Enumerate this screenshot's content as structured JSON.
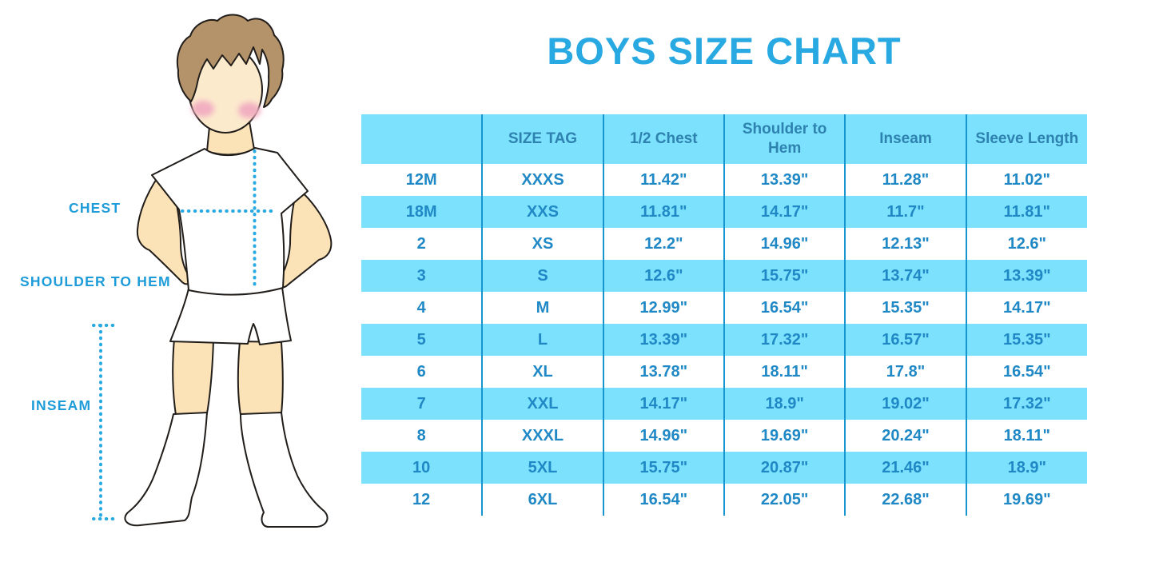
{
  "title": "BOYS SIZE CHART",
  "figure_labels": {
    "chest": "CHEST",
    "shoulder_to_hem": "SHOULDER TO HEM",
    "inseam": "INSEAM"
  },
  "colors": {
    "accent_blue": "#29A9E1",
    "label_blue": "#1E9CD9",
    "table_stripe": "#7CE1FD",
    "table_divider": "#1795CE",
    "header_text": "#2E82AF",
    "cell_text": "#2089C5",
    "skin": "#FBE3B7",
    "face_skin": "#FCEACD",
    "hair": "#B4936A",
    "cheek": "#F2AFC1",
    "outline": "#211D1A"
  },
  "chart_data": {
    "type": "table",
    "title": "BOYS SIZE CHART",
    "columns": [
      "",
      "SIZE TAG",
      "1/2 Chest",
      "Shoulder to Hem",
      "Inseam",
      "Sleeve Length"
    ],
    "rows": [
      [
        "12M",
        "XXXS",
        "11.42\"",
        "13.39\"",
        "11.28\"",
        "11.02\""
      ],
      [
        "18M",
        "XXS",
        "11.81\"",
        "14.17\"",
        "11.7\"",
        "11.81\""
      ],
      [
        "2",
        "XS",
        "12.2\"",
        "14.96\"",
        "12.13\"",
        "12.6\""
      ],
      [
        "3",
        "S",
        "12.6\"",
        "15.75\"",
        "13.74\"",
        "13.39\""
      ],
      [
        "4",
        "M",
        "12.99\"",
        "16.54\"",
        "15.35\"",
        "14.17\""
      ],
      [
        "5",
        "L",
        "13.39\"",
        "17.32\"",
        "16.57\"",
        "15.35\""
      ],
      [
        "6",
        "XL",
        "13.78\"",
        "18.11\"",
        "17.8\"",
        "16.54\""
      ],
      [
        "7",
        "XXL",
        "14.17\"",
        "18.9\"",
        "19.02\"",
        "17.32\""
      ],
      [
        "8",
        "XXXL",
        "14.96\"",
        "19.69\"",
        "20.24\"",
        "18.11\""
      ],
      [
        "10",
        "5XL",
        "15.75\"",
        "20.87\"",
        "21.46\"",
        "18.9\""
      ],
      [
        "12",
        "6XL",
        "16.54\"",
        "22.05\"",
        "22.68\"",
        "19.69\""
      ]
    ],
    "striped_row_indices": [
      1,
      3,
      5,
      7,
      9
    ],
    "legend_position": "none",
    "grid": "vertical-dividers-only"
  }
}
